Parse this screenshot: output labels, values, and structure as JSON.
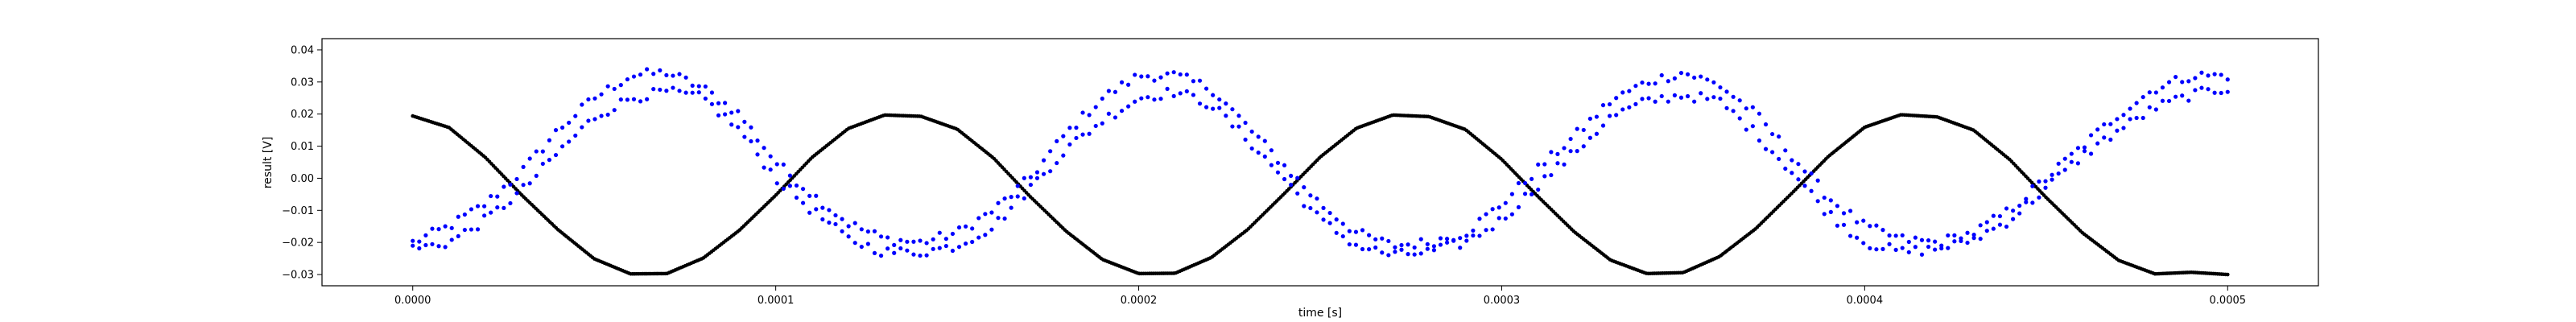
{
  "chart_data": {
    "type": "scatter",
    "title": "",
    "xlabel": "time [s]",
    "ylabel": "result [V]",
    "xlim": [
      -2.5e-05,
      0.000525
    ],
    "ylim": [
      -0.0335,
      0.0435
    ],
    "grid": false,
    "legend": "none",
    "xticks": [
      0.0,
      0.0001,
      0.0002,
      0.0003,
      0.0004,
      0.0005
    ],
    "xtick_labels": [
      "0.0000",
      "0.0001",
      "0.0002",
      "0.0003",
      "0.0004",
      "0.0005"
    ],
    "yticks": [
      -0.03,
      -0.02,
      -0.01,
      0.0,
      0.01,
      0.02,
      0.03,
      0.04
    ],
    "ytick_labels": [
      "−0.03",
      "−0.02",
      "−0.01",
      "0.00",
      "0.01",
      "0.02",
      "0.03",
      "0.04"
    ],
    "series": [
      {
        "color": "#000000",
        "marker": "dot-dense",
        "x": [
          0.0,
          1e-05,
          2e-05,
          3e-05,
          4e-05,
          5e-05,
          6e-05,
          7e-05,
          8e-05,
          9e-05,
          0.0001,
          0.00011,
          0.00012,
          0.00013,
          0.00014,
          0.00015,
          0.00016,
          0.00017,
          0.00018,
          0.00019,
          0.0002,
          0.00021,
          0.00022,
          0.00023,
          0.00024,
          0.00025,
          0.00026,
          0.00027,
          0.00028,
          0.00029,
          0.0003,
          0.00031,
          0.00032,
          0.00033,
          0.00034,
          0.00035,
          0.00036,
          0.00037,
          0.00038,
          0.00039,
          0.0004,
          0.00041,
          0.00042,
          0.00043,
          0.00044,
          0.00045,
          0.00046,
          0.00047,
          0.00048,
          0.00049,
          0.0005
        ],
        "y": [
          0.0194,
          0.0158,
          0.0065,
          -0.0052,
          -0.016,
          -0.0251,
          -0.0298,
          -0.0297,
          -0.0249,
          -0.0162,
          -0.0053,
          0.0065,
          0.0155,
          0.0197,
          0.0193,
          0.0153,
          0.0063,
          -0.0056,
          -0.0165,
          -0.0253,
          -0.0297,
          -0.0296,
          -0.0247,
          -0.016,
          -0.0049,
          0.0066,
          0.0156,
          0.0197,
          0.0192,
          0.0152,
          0.0059,
          -0.0057,
          -0.0167,
          -0.0255,
          -0.0297,
          -0.0294,
          -0.0244,
          -0.0157,
          -0.0046,
          0.0068,
          0.0159,
          0.0198,
          0.0191,
          0.015,
          0.0058,
          -0.006,
          -0.017,
          -0.0256,
          -0.0298,
          -0.0293,
          -0.03
        ]
      },
      {
        "color": "#0000ff",
        "marker": "dot-scatter",
        "x": [
          0.0,
          1e-05,
          2e-05,
          3e-05,
          4e-05,
          5e-05,
          6e-05,
          7e-05,
          8e-05,
          9e-05,
          0.0001,
          0.00011,
          0.00012,
          0.00013,
          0.00014,
          0.00015,
          0.00016,
          0.00017,
          0.00018,
          0.00019,
          0.0002,
          0.00021,
          0.00022,
          0.00023,
          0.00024,
          0.00025,
          0.00026,
          0.00027,
          0.00028,
          0.00029,
          0.0003,
          0.00031,
          0.00032,
          0.00033,
          0.00034,
          0.00035,
          0.00036,
          0.00037,
          0.00038,
          0.00039,
          0.0004,
          0.00041,
          0.00042,
          0.00043,
          0.00044,
          0.00045,
          0.00046,
          0.00047,
          0.00048,
          0.00049,
          0.0005
        ],
        "y": [
          -0.02,
          -0.015,
          -0.008,
          0.002,
          0.015,
          0.025,
          0.032,
          0.033,
          0.028,
          0.02,
          0.005,
          -0.005,
          -0.014,
          -0.019,
          -0.02,
          -0.017,
          -0.01,
          0.0,
          0.014,
          0.025,
          0.032,
          0.032,
          0.028,
          0.016,
          0.004,
          -0.008,
          -0.017,
          -0.021,
          -0.02,
          -0.017,
          -0.008,
          0.003,
          0.013,
          0.024,
          0.03,
          0.033,
          0.029,
          0.02,
          0.007,
          -0.006,
          -0.015,
          -0.019,
          -0.02,
          -0.017,
          -0.01,
          0.0,
          0.01,
          0.02,
          0.028,
          0.032,
          0.032
        ]
      },
      {
        "color": "#0000ff",
        "marker": "dot-scatter",
        "x": [
          0.0,
          1e-05,
          2e-05,
          3e-05,
          4e-05,
          5e-05,
          6e-05,
          7e-05,
          8e-05,
          9e-05,
          0.0001,
          0.00011,
          0.00012,
          0.00013,
          0.00014,
          0.00015,
          0.00016,
          0.00017,
          0.00018,
          0.00019,
          0.0002,
          0.00021,
          0.00022,
          0.00023,
          0.00024,
          0.00025,
          0.00026,
          0.00027,
          0.00028,
          0.00029,
          0.0003,
          0.00031,
          0.00032,
          0.00033,
          0.00034,
          0.00035,
          0.00036,
          0.00037,
          0.00038,
          0.00039,
          0.0004,
          0.00041,
          0.00042,
          0.00043,
          0.00044,
          0.00045,
          0.00046,
          0.00047,
          0.00048,
          0.00049,
          0.0005
        ],
        "y": [
          -0.022,
          -0.02,
          -0.013,
          -0.004,
          0.008,
          0.019,
          0.025,
          0.027,
          0.025,
          0.015,
          0.0,
          -0.01,
          -0.019,
          -0.023,
          -0.023,
          -0.021,
          -0.015,
          -0.003,
          0.009,
          0.018,
          0.025,
          0.027,
          0.023,
          0.012,
          0.0,
          -0.013,
          -0.021,
          -0.024,
          -0.023,
          -0.02,
          -0.013,
          -0.002,
          0.008,
          0.019,
          0.024,
          0.026,
          0.024,
          0.014,
          0.002,
          -0.011,
          -0.02,
          -0.023,
          -0.022,
          -0.019,
          -0.013,
          -0.003,
          0.007,
          0.015,
          0.022,
          0.026,
          0.028
        ]
      }
    ]
  }
}
